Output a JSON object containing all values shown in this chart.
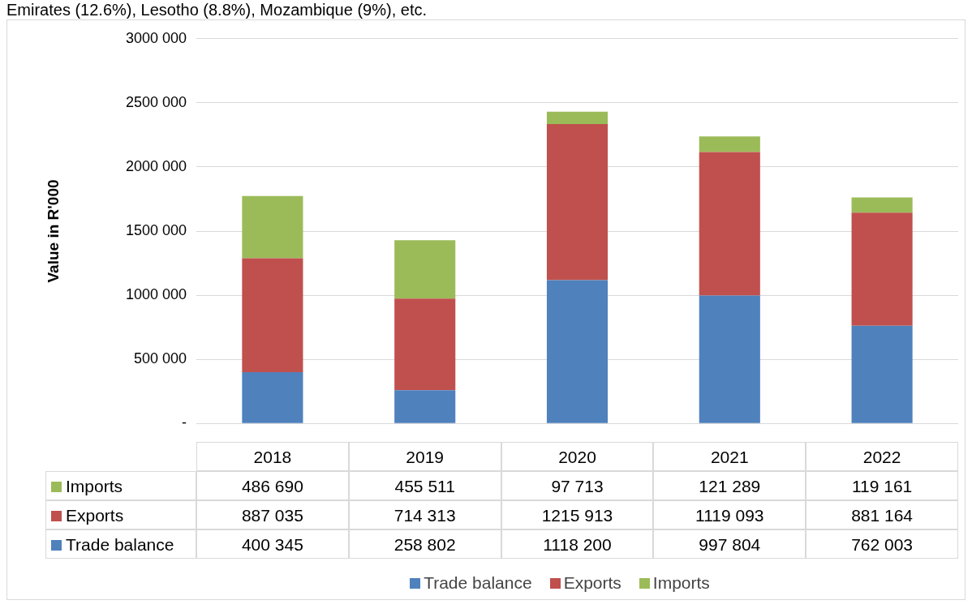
{
  "chart_data": {
    "type": "bar",
    "annotations": [
      "Emirates (12.6%), Lesotho (8.8%), Mozambique (9%), etc."
    ],
    "ylabel": "Value in R'000",
    "categories": [
      "2018",
      "2019",
      "2020",
      "2021",
      "2022"
    ],
    "stacked": true,
    "data_labels": true,
    "grid": "y",
    "legend": "bottom",
    "ylim": [
      0,
      3000000
    ],
    "yticks": [
      {
        "value": 0,
        "label": "-"
      },
      {
        "value": 500000,
        "label": "500 000"
      },
      {
        "value": 1000000,
        "label": "1000 000"
      },
      {
        "value": 1500000,
        "label": "1500 000"
      },
      {
        "value": 2000000,
        "label": "2000 000"
      },
      {
        "value": 2500000,
        "label": "2500 000"
      },
      {
        "value": 3000000,
        "label": "3000 000"
      }
    ],
    "series": [
      {
        "name": "Trade balance",
        "color": "#4f81bd",
        "values": [
          400345,
          258802,
          1118200,
          997804,
          762003
        ]
      },
      {
        "name": "Exports",
        "color": "#c0504d",
        "values": [
          887035,
          714313,
          1215913,
          1119093,
          881164
        ]
      },
      {
        "name": "Imports",
        "color": "#9bbb59",
        "values": [
          486690,
          455511,
          97713,
          121289,
          119161
        ]
      }
    ]
  }
}
